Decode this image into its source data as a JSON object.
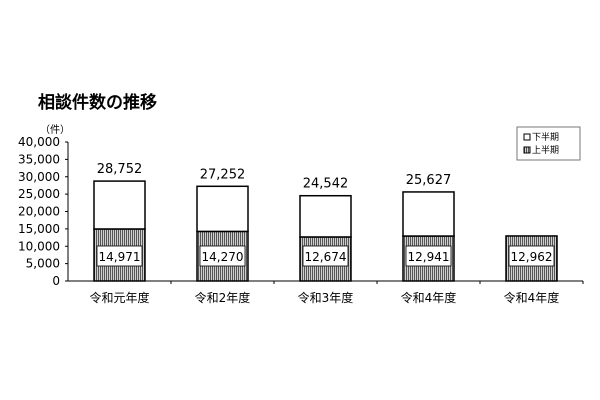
{
  "chart_data": {
    "type": "bar",
    "stacked": true,
    "title": "相談件数の推移",
    "ylabel": "（件）",
    "ylim": [
      0,
      40000
    ],
    "yticks": [
      "0",
      "5,000",
      "10,000",
      "15,000",
      "20,000",
      "25,000",
      "30,000",
      "35,000",
      "40,000"
    ],
    "categories": [
      "令和元年度",
      "令和2年度",
      "令和3年度",
      "令和4年度",
      "令和4年度"
    ],
    "series": [
      {
        "name": "上半期",
        "values": [
          14971,
          14270,
          12674,
          12941,
          12962
        ],
        "labels": [
          "14,971",
          "14,270",
          "12,674",
          "12,941",
          "12,962"
        ],
        "fill": "hatched"
      },
      {
        "name": "下半期",
        "values": [
          13781,
          12982,
          11868,
          12686,
          null
        ],
        "fill": "#ffffff"
      }
    ],
    "totals": [
      28752,
      27252,
      24542,
      25627,
      null
    ],
    "total_labels": [
      "28,752",
      "27,252",
      "24,542",
      "25,627",
      ""
    ],
    "legend": {
      "position": "top-right",
      "items": [
        "下半期",
        "上半期"
      ]
    },
    "grid": false
  }
}
